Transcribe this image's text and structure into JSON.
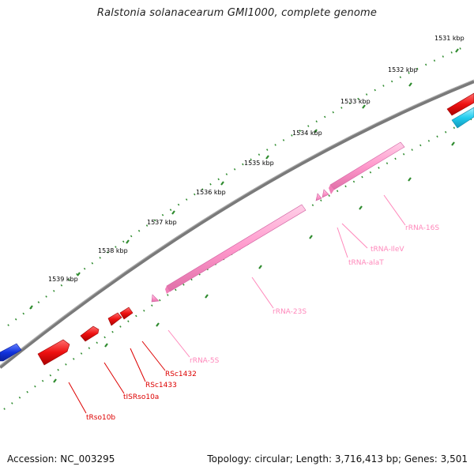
{
  "header": {
    "title": "Ralstonia solanacearum GMI1000, complete genome"
  },
  "footer": {
    "accession": "Accession: NC_003295",
    "summary": "Topology: circular; Length: 3,716,413 bp; Genes: 3,501"
  },
  "scale": {
    "tick_labels": [
      "1531 kbp",
      "1532 kbp",
      "1533 kbp",
      "1534 kbp",
      "1535 kbp",
      "1536 kbp",
      "1537 kbp",
      "1538 kbp",
      "1539 kbp"
    ]
  },
  "feature_labels": [
    "rRNA-16S",
    "tRNA-IleV",
    "tRNA-alaT",
    "rRNA-23S",
    "rRNA-5S",
    "RSc1432",
    "RSc1433",
    "tISRso10a",
    "tRso10b"
  ],
  "colors": {
    "backbone": "#7a7a7a",
    "tick": "#2e8b2e",
    "rRNA": "#ff99cc",
    "tRNA_label": "#ff88bb",
    "cds_red": "#ee1111",
    "cds_blue": "#1133dd",
    "cds_cyan": "#22ccee"
  }
}
